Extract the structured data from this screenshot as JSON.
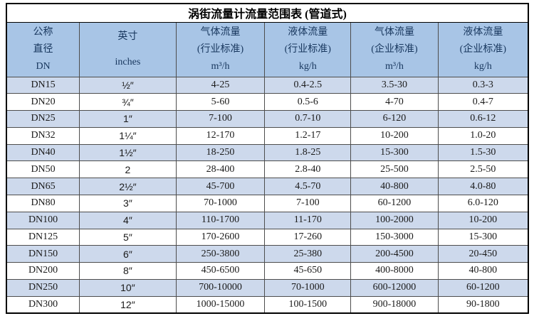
{
  "title": "涡街流量计流量范围表 (管道式)",
  "colors": {
    "header_bg": "#a8c5e6",
    "stripe_bg": "#cdd9ec",
    "header_text": "#17365d",
    "body_text": "#1a1a1a"
  },
  "table": {
    "headers": [
      {
        "name": "nominal-diameter",
        "lines": [
          "公称",
          "直径",
          "DN"
        ]
      },
      {
        "name": "inches",
        "lines": [
          "英寸",
          "inches"
        ]
      },
      {
        "name": "gas-flow-industry-standard",
        "lines": [
          "气体流量",
          "(行业标准)",
          "m³/h"
        ]
      },
      {
        "name": "liquid-flow-industry-standard",
        "lines": [
          "液体流量",
          "(行业标准)",
          "kg/h"
        ]
      },
      {
        "name": "gas-flow-enterprise-standard",
        "lines": [
          "气体流量",
          "(企业标准)",
          "m³/h"
        ]
      },
      {
        "name": "liquid-flow-enterprise-standard",
        "lines": [
          "液体流量",
          "(企业标准)",
          "kg/h"
        ]
      }
    ],
    "rows": [
      [
        "DN15",
        "½″",
        "4-25",
        "0.4-2.5",
        "3.5-30",
        "0.3-3"
      ],
      [
        "DN20",
        "¾″",
        "5-60",
        "0.5-6",
        "4-70",
        "0.4-7"
      ],
      [
        "DN25",
        "1″",
        "7-100",
        "0.7-10",
        "6-120",
        "0.6-12"
      ],
      [
        "DN32",
        "1¼″",
        "12-170",
        "1.2-17",
        "10-200",
        "1.0-20"
      ],
      [
        "DN40",
        "1½″",
        "18-250",
        "1.8-25",
        "15-300",
        "1.5-30"
      ],
      [
        "DN50",
        "2",
        "28-400",
        "2.8-40",
        "25-500",
        "2.5-50"
      ],
      [
        "DN65",
        "2½″",
        "45-700",
        "4.5-70",
        "40-800",
        "4.0-80"
      ],
      [
        "DN80",
        "3″",
        "70-1000",
        "7-100",
        "60-1200",
        "6.0-120"
      ],
      [
        "DN100",
        "4″",
        "110-1700",
        "11-170",
        "100-2000",
        "10-200"
      ],
      [
        "DN125",
        "5″",
        "170-2600",
        "17-260",
        "150-3000",
        "15-300"
      ],
      [
        "DN150",
        "6″",
        "250-3800",
        "25-380",
        "200-4500",
        "20-450"
      ],
      [
        "DN200",
        "8″",
        "450-6500",
        "45-650",
        "400-8000",
        "40-800"
      ],
      [
        "DN250",
        "10″",
        "700-10000",
        "70-1000",
        "600-12000",
        "60-1200"
      ],
      [
        "DN300",
        "12″",
        "1000-15000",
        "100-1500",
        "900-18000",
        "90-1800"
      ]
    ]
  }
}
